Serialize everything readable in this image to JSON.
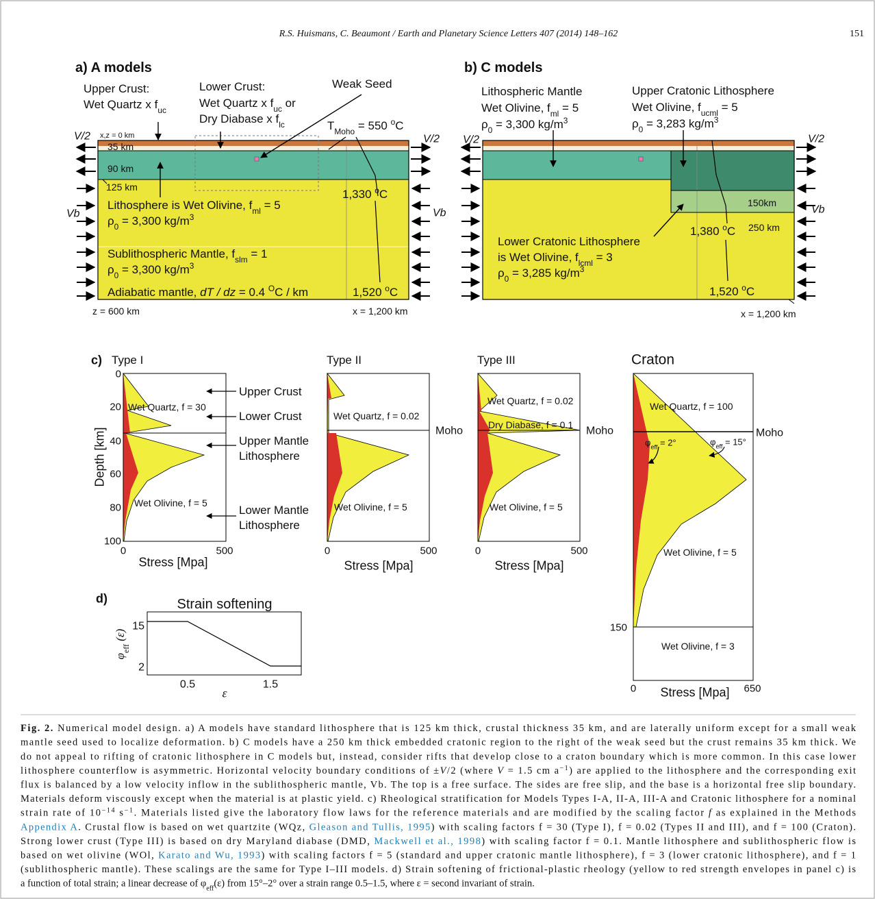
{
  "header": {
    "running_head": "R.S. Huismans, C. Beaumont / Earth and Planetary Science Letters 407 (2014) 148–162",
    "page_number": "151"
  },
  "panel_a": {
    "title": "a) A models",
    "upper_crust": [
      "Upper Crust:",
      [
        "Wet Quartz x f",
        {
          "sub": "uc"
        }
      ]
    ],
    "lower_crust": [
      "Lower Crust:",
      [
        "Wet Quartz x f",
        {
          "sub": "uc"
        },
        " or"
      ],
      [
        "Dry Diabase x f",
        {
          "sub": "lc"
        }
      ]
    ],
    "weak_seed": "Weak Seed",
    "t_moho": [
      "T",
      {
        "sub": "Moho"
      },
      " = 550 ",
      {
        "sup": "o"
      },
      "C"
    ],
    "v_left": "V/2",
    "v_right": "V/2",
    "origin": "x,z = 0 km",
    "depths": [
      "35 km",
      "90 km",
      "125 km"
    ],
    "t_base": [
      "1,330 ",
      {
        "sup": "o"
      },
      "C"
    ],
    "lithosphere": [
      [
        "Lithosphere is Wet Olivine, f",
        {
          "sub": "ml"
        },
        " = 5"
      ],
      [
        "ρ",
        {
          "sub": "0"
        },
        "   = 3,300 kg/m",
        {
          "sup": "3"
        }
      ]
    ],
    "vb_left": "Vb",
    "vb_right": "Vb",
    "sublithosphere": [
      [
        "Sublithospheric Mantle, f",
        {
          "sub": "slm"
        },
        " = 1"
      ],
      [
        "ρ",
        {
          "sub": "0"
        },
        "   = 3,300 kg/m",
        {
          "sup": "3"
        }
      ]
    ],
    "adiabatic": [
      "Adiabatic mantle, ",
      {
        "i": "dT / dz"
      },
      " = 0.4 ",
      {
        "sup": "O"
      },
      "C / km"
    ],
    "t_bottom": [
      "1,520 ",
      {
        "sup": "o"
      },
      "C"
    ],
    "z_max": "z = 600 km",
    "x_max": "x = 1,200 km"
  },
  "panel_b": {
    "title": "b) C models",
    "lithospheric_mantle": [
      "Lithospheric Mantle",
      [
        "Wet Olivine, f",
        {
          "sub": "ml"
        },
        " = 5"
      ],
      [
        "ρ",
        {
          "sub": "0"
        },
        "   = 3,300 kg/m",
        {
          "sup": "3"
        }
      ]
    ],
    "upper_cratonic": [
      "Upper Cratonic Lithosphere",
      [
        "Wet Olivine, f",
        {
          "sub": "ucml"
        },
        " = 5"
      ],
      [
        "ρ",
        {
          "sub": "0"
        },
        "   = 3,283 kg/m",
        {
          "sup": "3"
        }
      ]
    ],
    "v_left": "V/2",
    "v_right": "V/2",
    "vb": "Vb",
    "craton_depths": [
      "150km",
      "250 km"
    ],
    "t_craton": [
      "1,380 ",
      {
        "sup": "o"
      },
      "C"
    ],
    "lower_cratonic": [
      "Lower Cratonic Lithosphere",
      [
        "is Wet Olivine, f",
        {
          "sub": "lcml"
        },
        " = 3"
      ],
      [
        "ρ",
        {
          "sub": "0"
        },
        "   = 3,285 kg/m",
        {
          "sup": "3"
        }
      ]
    ],
    "t_bottom": [
      "1,520 ",
      {
        "sup": "o"
      },
      "C"
    ],
    "x_max": "x = 1,200 km"
  },
  "panel_c": {
    "label": "c)",
    "type_1": {
      "title": "Type I",
      "yticks": [
        "0",
        "20",
        "40",
        "60",
        "80",
        "100"
      ],
      "ylabel": "Depth [km]",
      "xticks": [
        "0",
        "500"
      ],
      "xlabel": "Stress [Mpa]",
      "crust": "Wet Quartz, f = 30",
      "mantle": "Wet Olivine, f = 5"
    },
    "layer_labels": [
      "Upper Crust",
      "Lower Crust",
      "Upper Mantle",
      "Lithosphere",
      "Lower Mantle",
      "Lithosphere"
    ],
    "type_2": {
      "title": "Type II",
      "crust": "Wet Quartz, f = 0.02",
      "moho": "Moho",
      "mantle": "Wet Olivine, f = 5",
      "xticks": [
        "0",
        "500"
      ],
      "xlabel": "Stress [Mpa]"
    },
    "type_3": {
      "title": "Type III",
      "upper_crust": "Wet Quartz, f = 0.02",
      "lower_crust": "Dry Diabase, f = 0.1",
      "moho": "Moho",
      "mantle": "Wet Olivine, f = 5",
      "xticks": [
        "0",
        "500"
      ],
      "xlabel": "Stress [Mpa]"
    },
    "craton": {
      "title": "Craton",
      "crust": "Wet Quartz, f = 100",
      "moho": "Moho",
      "phi_low": [
        "φ",
        {
          "sub": "eff"
        },
        " = 2°"
      ],
      "phi_high": [
        "φ",
        {
          "sub": "eff"
        },
        " = 15°"
      ],
      "upper_mantle": "Wet Olivine, f = 5",
      "depth_tick": "150",
      "lower_mantle": "Wet Olivine, f = 3",
      "xticks": [
        "0",
        "650"
      ],
      "xlabel": "Stress [Mpa]"
    }
  },
  "panel_d": {
    "label": "d)",
    "title": "Strain softening",
    "ylabel": [
      {
        "i": "φ"
      },
      {
        "sub": "eff"
      },
      {
        "i": " (ε)"
      }
    ],
    "yticks": [
      "15",
      "2"
    ],
    "xticks": [
      "0.5",
      "1.5"
    ],
    "xlabel": "ε"
  },
  "caption": {
    "lines": [
      [
        {
          "b": "Fig. 2."
        },
        " Numerical model design. a) A models have standard lithosphere that is 125 km thick, crustal thickness 35 km, and are laterally uniform except for a small weak"
      ],
      [
        "mantle seed used to localize deformation. b) C models have a 250 km thick embedded cratonic region to the right of the weak seed but the crust remains 35 km thick. We"
      ],
      [
        "do not appeal to rifting of cratonic lithosphere in C models but, instead, consider rifts that develop close to a craton boundary which is more common. In this case lower"
      ],
      [
        "lithosphere counterflow is asymmetric. Horizontal velocity boundary conditions of ±",
        {
          "i": "V"
        },
        "/2 (where ",
        {
          "i": "V"
        },
        " = 1.5 cm a",
        {
          "sup": "−1"
        },
        ") are applied to the lithosphere and the corresponding exit"
      ],
      [
        "flux is balanced by a low velocity inflow in the sublithospheric mantle, Vb. The top is a free surface. The sides are free slip, and the base is a horizontal free slip boundary."
      ],
      [
        "Materials deform viscously except when the material is at plastic yield. c) Rheological stratification for Models Types I-A, II-A, III-A and Cratonic lithosphere for a nominal"
      ],
      [
        "strain rate of 10",
        {
          "sup": "−14"
        },
        " s",
        {
          "sup": "−1"
        },
        ". Materials listed give the laboratory flow laws for the reference materials and are modified by the scaling factor ",
        {
          "i": "f"
        },
        " as explained in the Methods"
      ],
      [
        {
          "link": "Appendix A"
        },
        ". Crustal flow is based on wet quartzite (WQz, ",
        {
          "link": "Gleason and Tullis, 1995"
        },
        ") with scaling factors f = 30 (Type I), f = 0.02 (Types II and III), and f = 100 (Craton)."
      ],
      [
        "Strong lower crust (Type III) is based on dry Maryland diabase (DMD, ",
        {
          "link": "Mackwell et al., 1998"
        },
        ") with scaling factor f = 0.1. Mantle lithosphere and sublithospheric flow is"
      ],
      [
        "based on wet olivine (WOl, ",
        {
          "link": "Karato and Wu, 1993"
        },
        ") with scaling factors f = 5 (standard and upper cratonic mantle lithosphere), f = 3 (lower cratonic lithosphere), and f = 1"
      ],
      [
        "(sublithospheric mantle). These scalings are the same for Type I–III models. d) Strain softening of frictional-plastic rheology (yellow to red strength envelopes in panel c) is"
      ],
      [
        "a function of total strain; a linear decrease of φ",
        {
          "sub": "eff"
        },
        "(ε) from 15°–2° over a strain range 0.5–1.5, where ε = second invariant of strain."
      ]
    ]
  }
}
